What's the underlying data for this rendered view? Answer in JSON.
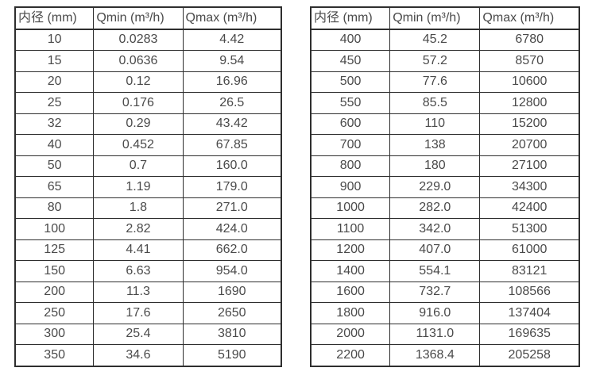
{
  "page": {
    "background": "#ffffff",
    "text_color": "#4a4a4a",
    "border_color": "#2e2e2e"
  },
  "tables": [
    {
      "name": "flow-spec-table-small-diameters",
      "headers": [
        "内径 (mm)",
        "Qmin (m³/h)",
        "Qmax (m³/h)"
      ],
      "rows": [
        [
          "10",
          "0.0283",
          "4.42"
        ],
        [
          "15",
          "0.0636",
          "9.54"
        ],
        [
          "20",
          "0.12",
          "16.96"
        ],
        [
          "25",
          "0.176",
          "26.5"
        ],
        [
          "32",
          "0.29",
          "43.42"
        ],
        [
          "40",
          "0.452",
          "67.85"
        ],
        [
          "50",
          "0.7",
          "160.0"
        ],
        [
          "65",
          "1.19",
          "179.0"
        ],
        [
          "80",
          "1.8",
          "271.0"
        ],
        [
          "100",
          "2.82",
          "424.0"
        ],
        [
          "125",
          "4.41",
          "662.0"
        ],
        [
          "150",
          "6.63",
          "954.0"
        ],
        [
          "200",
          "11.3",
          "1690"
        ],
        [
          "250",
          "17.6",
          "2650"
        ],
        [
          "300",
          "25.4",
          "3810"
        ],
        [
          "350",
          "34.6",
          "5190"
        ]
      ]
    },
    {
      "name": "flow-spec-table-large-diameters",
      "headers": [
        "内径 (mm)",
        "Qmin (m³/h)",
        "Qmax (m³/h)"
      ],
      "rows": [
        [
          "400",
          "45.2",
          "6780"
        ],
        [
          "450",
          "57.2",
          "8570"
        ],
        [
          "500",
          "77.6",
          "10600"
        ],
        [
          "550",
          "85.5",
          "12800"
        ],
        [
          "600",
          "110",
          "15200"
        ],
        [
          "700",
          "138",
          "20700"
        ],
        [
          "800",
          "180",
          "27100"
        ],
        [
          "900",
          "229.0",
          "34300"
        ],
        [
          "1000",
          "282.0",
          "42400"
        ],
        [
          "1100",
          "342.0",
          "51300"
        ],
        [
          "1200",
          "407.0",
          "61000"
        ],
        [
          "1400",
          "554.1",
          "83121"
        ],
        [
          "1600",
          "732.7",
          "108566"
        ],
        [
          "1800",
          "916.0",
          "137404"
        ],
        [
          "2000",
          "1131.0",
          "169635"
        ],
        [
          "2200",
          "1368.4",
          "205258"
        ]
      ]
    }
  ]
}
